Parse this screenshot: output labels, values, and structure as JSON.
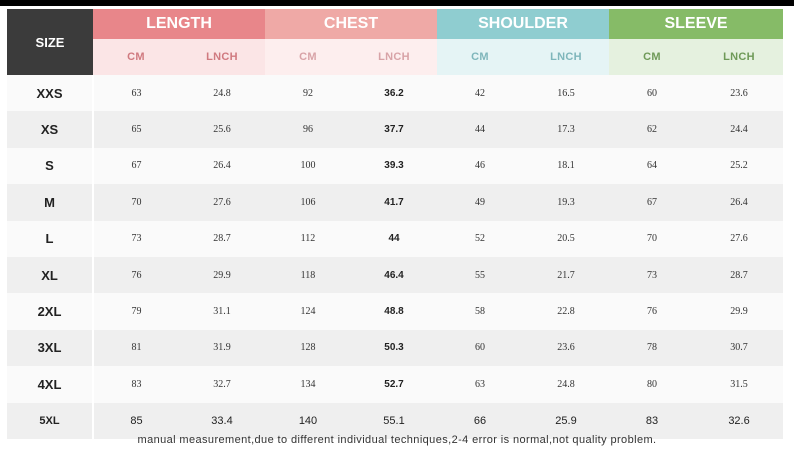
{
  "table": {
    "corner_label": "SIZE",
    "groups": [
      {
        "name": "LENGTH",
        "units": [
          "CM",
          "LNCH"
        ]
      },
      {
        "name": "CHEST",
        "units": [
          "CM",
          "LNCH"
        ]
      },
      {
        "name": "SHOULDER",
        "units": [
          "CM",
          "LNCH"
        ]
      },
      {
        "name": "SLEEVE",
        "units": [
          "CM",
          "LNCH"
        ]
      }
    ],
    "rows": [
      {
        "size": "XXS",
        "values": [
          "63",
          "24.8",
          "92",
          "36.2",
          "42",
          "16.5",
          "60",
          "23.6"
        ]
      },
      {
        "size": "XS",
        "values": [
          "65",
          "25.6",
          "96",
          "37.7",
          "44",
          "17.3",
          "62",
          "24.4"
        ]
      },
      {
        "size": "S",
        "values": [
          "67",
          "26.4",
          "100",
          "39.3",
          "46",
          "18.1",
          "64",
          "25.2"
        ]
      },
      {
        "size": "M",
        "values": [
          "70",
          "27.6",
          "106",
          "41.7",
          "49",
          "19.3",
          "67",
          "26.4"
        ]
      },
      {
        "size": "L",
        "values": [
          "73",
          "28.7",
          "112",
          "44",
          "52",
          "20.5",
          "70",
          "27.6"
        ]
      },
      {
        "size": "XL",
        "values": [
          "76",
          "29.9",
          "118",
          "46.4",
          "55",
          "21.7",
          "73",
          "28.7"
        ]
      },
      {
        "size": "2XL",
        "values": [
          "79",
          "31.1",
          "124",
          "48.8",
          "58",
          "22.8",
          "76",
          "29.9"
        ]
      },
      {
        "size": "3XL",
        "values": [
          "81",
          "31.9",
          "128",
          "50.3",
          "60",
          "23.6",
          "78",
          "30.7"
        ]
      },
      {
        "size": "4XL",
        "values": [
          "83",
          "32.7",
          "134",
          "52.7",
          "63",
          "24.8",
          "80",
          "31.5"
        ]
      },
      {
        "size": "5XL",
        "values": [
          "85",
          "33.4",
          "140",
          "55.1",
          "66",
          "25.9",
          "83",
          "32.6"
        ]
      }
    ]
  },
  "footnote": "manual measurement,due to different individual techniques,2-4 error is normal,not quality problem.",
  "colors": {
    "length": "#e8868a",
    "chest": "#efa9a6",
    "shoulder": "#8fcdd0",
    "sleeve": "#86bb67",
    "corner": "#3b3b3b"
  }
}
